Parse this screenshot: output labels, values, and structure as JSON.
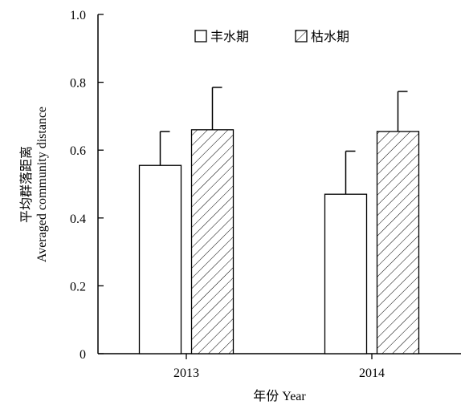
{
  "chart_data": {
    "type": "bar",
    "categories": [
      "2013",
      "2014"
    ],
    "series": [
      {
        "name": "丰水期",
        "values": [
          0.555,
          0.47
        ],
        "errors": [
          0.1,
          0.127
        ],
        "pattern": "none"
      },
      {
        "name": "枯水期",
        "values": [
          0.66,
          0.655
        ],
        "errors": [
          0.125,
          0.118
        ],
        "pattern": "diagonal-hatch"
      }
    ],
    "yticks": [
      "0",
      "0.2",
      "0.4",
      "0.6",
      "0.8",
      "1.0"
    ],
    "ytick_values": [
      0,
      0.2,
      0.4,
      0.6,
      0.8,
      1.0
    ],
    "ylim": [
      0,
      1.0
    ],
    "xlabel": "年份 Year",
    "ylabel_line1": "平均群落距离",
    "ylabel_line2": "Averaged community distance",
    "legend_position": "top",
    "colors": {
      "bar_fill": "#ffffff",
      "stroke": "#000000"
    }
  }
}
